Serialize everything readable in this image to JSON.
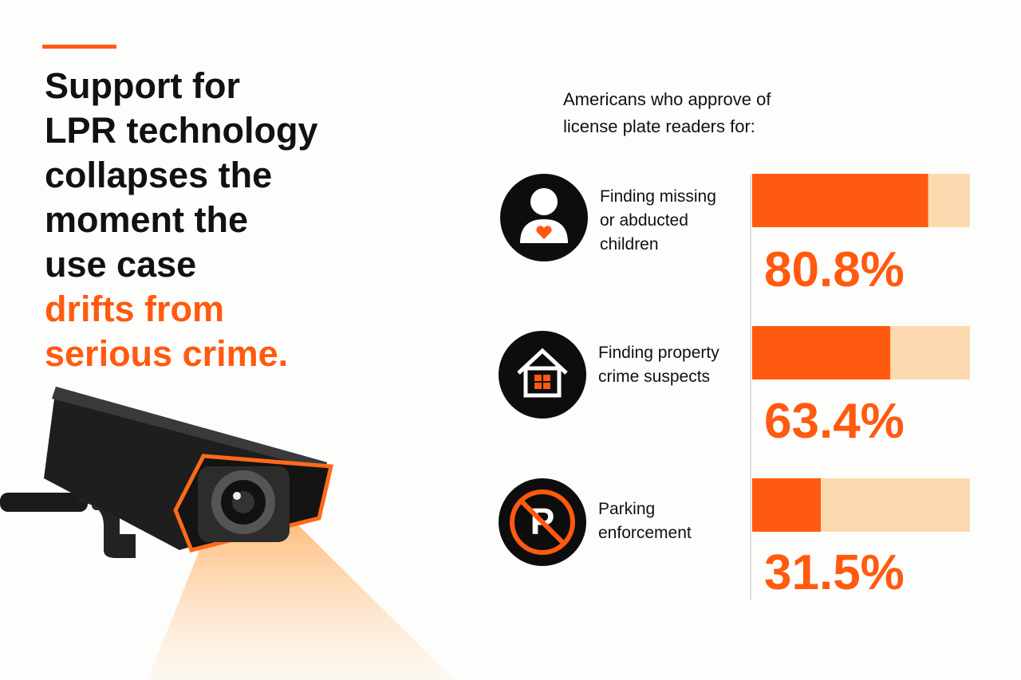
{
  "chart_data": {
    "type": "bar",
    "orientation": "horizontal",
    "title_lines": [
      "Support for",
      "LPR technology",
      "collapses the",
      "moment the",
      "use case"
    ],
    "title_highlight_lines": [
      "drifts from",
      "serious crime."
    ],
    "subtitle": "Americans who approve of license plate readers for:",
    "categories": [
      "Finding missing or abducted children",
      "Finding property crime suspects",
      "Parking enforcement"
    ],
    "values": [
      80.8,
      63.4,
      31.5
    ],
    "value_labels": [
      "80.8%",
      "63.4%",
      "31.5%"
    ],
    "xlim": [
      0,
      100
    ],
    "color": "#ff5a0f",
    "track_color": "#fdd9b0"
  }
}
